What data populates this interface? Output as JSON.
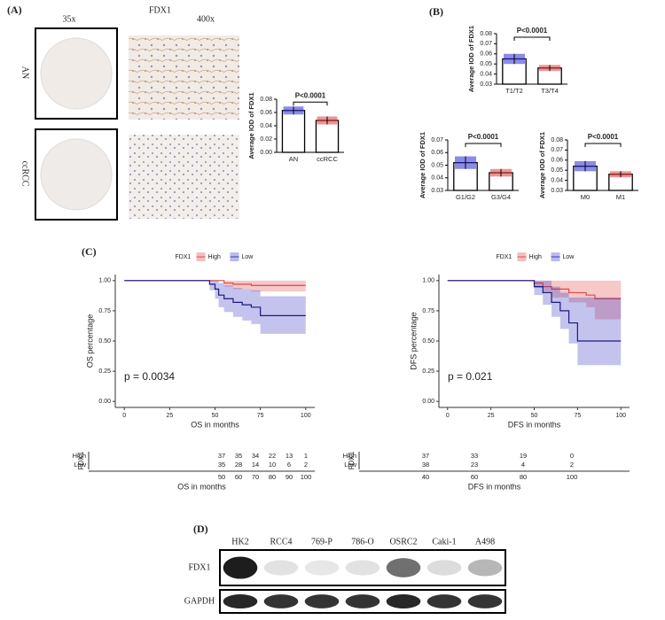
{
  "panels": [
    "(A)",
    "(B)",
    "(C)",
    "(D)"
  ],
  "ihc": {
    "marker": "FDX1",
    "magnifications": [
      "35x",
      "400x"
    ],
    "groups": [
      "AN",
      "ccRCC"
    ]
  },
  "chart_data": [
    {
      "type": "bar",
      "ylabel": "Average IOD of FDX1",
      "categories": [
        "AN",
        "ccRCC"
      ],
      "values": [
        0.063,
        0.048
      ],
      "errors": [
        0.006,
        0.006
      ],
      "colors": [
        "#2b2bd6",
        "#e03a3a"
      ],
      "annotation": "P<0.0001",
      "ylim": [
        0,
        0.08
      ],
      "yticks": [
        {
          "value": 0,
          "label": "0.00"
        },
        {
          "value": 0.02,
          "label": "0.02"
        },
        {
          "value": 0.04,
          "label": "0.04"
        },
        {
          "value": 0.06,
          "label": "0.06"
        },
        {
          "value": 0.08,
          "label": "0.08"
        }
      ]
    },
    {
      "type": "bar",
      "ylabel": "Average IOD of FDX1",
      "categories": [
        "T1/T2",
        "T3/T4"
      ],
      "values": [
        0.055,
        0.046
      ],
      "errors": [
        0.005,
        0.003
      ],
      "colors": [
        "#2b2bd6",
        "#e03a3a"
      ],
      "annotation": "P<0.0001",
      "ylim": [
        0.03,
        0.08
      ],
      "yticks": [
        {
          "value": 0.03,
          "label": "0.03"
        },
        {
          "value": 0.04,
          "label": "0.04"
        },
        {
          "value": 0.05,
          "label": "0.05"
        },
        {
          "value": 0.06,
          "label": "0.06"
        },
        {
          "value": 0.07,
          "label": "0.07"
        },
        {
          "value": 0.08,
          "label": "0.08"
        }
      ]
    },
    {
      "type": "bar",
      "ylabel": "Average IOD of FDX1",
      "categories": [
        "G1/G2",
        "G3/G4"
      ],
      "values": [
        0.052,
        0.044
      ],
      "errors": [
        0.005,
        0.003
      ],
      "colors": [
        "#2b2bd6",
        "#e03a3a"
      ],
      "annotation": "P<0.0001",
      "ylim": [
        0.03,
        0.07
      ],
      "yticks": [
        {
          "value": 0.03,
          "label": "0.03"
        },
        {
          "value": 0.04,
          "label": "0.04"
        },
        {
          "value": 0.05,
          "label": "0.05"
        },
        {
          "value": 0.06,
          "label": "0.06"
        },
        {
          "value": 0.07,
          "label": "0.07"
        }
      ]
    },
    {
      "type": "bar",
      "ylabel": "Average IOD of FDX1",
      "categories": [
        "M0",
        "M1"
      ],
      "values": [
        0.054,
        0.046
      ],
      "errors": [
        0.005,
        0.003
      ],
      "colors": [
        "#2b2bd6",
        "#e03a3a"
      ],
      "annotation": "P<0.0001",
      "ylim": [
        0.03,
        0.08
      ],
      "yticks": [
        {
          "value": 0.03,
          "label": "0.03"
        },
        {
          "value": 0.04,
          "label": "0.04"
        },
        {
          "value": 0.05,
          "label": "0.05"
        },
        {
          "value": 0.06,
          "label": "0.06"
        },
        {
          "value": 0.07,
          "label": "0.07"
        },
        {
          "value": 0.08,
          "label": "0.08"
        }
      ]
    },
    {
      "type": "line",
      "xlabel": "OS in months",
      "ylabel": "OS percentage",
      "legend_title": "FDX1",
      "annotation": "p = 0.0034",
      "xlim": [
        -5,
        105
      ],
      "xticks": [
        0,
        25,
        50,
        75,
        100
      ],
      "ylim": [
        -0.05,
        1.05
      ],
      "yticks": [
        {
          "value": 0,
          "label": "0.00"
        },
        {
          "value": 0.25,
          "label": "0.25"
        },
        {
          "value": 0.5,
          "label": "0.50"
        },
        {
          "value": 0.75,
          "label": "0.75"
        },
        {
          "value": 1,
          "label": "1.00"
        }
      ],
      "series": [
        {
          "name": "High",
          "color": "#e04848",
          "x": [
            0,
            50,
            55,
            60,
            70,
            100
          ],
          "values": [
            1,
            1,
            0.98,
            0.97,
            0.96,
            0.96
          ],
          "lower": [
            1,
            1,
            0.95,
            0.93,
            0.91,
            0.91
          ],
          "upper": [
            1,
            1,
            1,
            1,
            1,
            1
          ]
        },
        {
          "name": "Low",
          "color": "#3838c8",
          "x": [
            0,
            45,
            47,
            50,
            52,
            55,
            60,
            65,
            70,
            75,
            100
          ],
          "values": [
            1,
            1,
            0.97,
            0.93,
            0.88,
            0.85,
            0.82,
            0.8,
            0.78,
            0.71,
            0.71
          ],
          "lower": [
            1,
            1,
            0.92,
            0.85,
            0.78,
            0.74,
            0.7,
            0.67,
            0.64,
            0.56,
            0.56
          ],
          "upper": [
            1,
            1,
            1,
            1,
            0.98,
            0.96,
            0.94,
            0.93,
            0.92,
            0.87,
            0.87
          ]
        }
      ]
    },
    {
      "type": "line",
      "xlabel": "DFS in months",
      "ylabel": "DFS percentage",
      "legend_title": "FDX1",
      "annotation": "p = 0.021",
      "xlim": [
        -5,
        105
      ],
      "xticks": [
        0,
        25,
        50,
        75,
        100
      ],
      "ylim": [
        -0.05,
        1.05
      ],
      "yticks": [
        {
          "value": 0,
          "label": "0.00"
        },
        {
          "value": 0.25,
          "label": "0.25"
        },
        {
          "value": 0.5,
          "label": "0.50"
        },
        {
          "value": 0.75,
          "label": "0.75"
        },
        {
          "value": 1,
          "label": "1.00"
        }
      ],
      "series": [
        {
          "name": "High",
          "color": "#e04848",
          "x": [
            0,
            45,
            50,
            55,
            60,
            70,
            80,
            85,
            100
          ],
          "values": [
            1,
            1,
            0.98,
            0.95,
            0.93,
            0.9,
            0.88,
            0.85,
            0.85
          ],
          "lower": [
            1,
            1,
            0.94,
            0.9,
            0.86,
            0.82,
            0.78,
            0.68,
            0.68
          ],
          "upper": [
            1,
            1,
            1,
            1,
            1,
            1,
            1,
            1,
            1
          ]
        },
        {
          "name": "Low",
          "color": "#3838c8",
          "x": [
            0,
            45,
            50,
            55,
            60,
            65,
            70,
            75,
            100
          ],
          "values": [
            1,
            1,
            0.95,
            0.9,
            0.82,
            0.75,
            0.65,
            0.5,
            0.5
          ],
          "lower": [
            1,
            1,
            0.88,
            0.8,
            0.7,
            0.6,
            0.48,
            0.3,
            0.3
          ],
          "upper": [
            1,
            1,
            1,
            1,
            0.95,
            0.9,
            0.86,
            0.86,
            0.86
          ]
        }
      ]
    }
  ],
  "risk_tables": [
    {
      "title": "FDX1",
      "xlabel": "OS in months",
      "times": [
        "50",
        "60",
        "70",
        "80",
        "90",
        "100"
      ],
      "rows": [
        {
          "name": "High",
          "counts": [
            "37",
            "35",
            "34",
            "22",
            "13",
            "1"
          ]
        },
        {
          "name": "Low",
          "counts": [
            "35",
            "28",
            "14",
            "10",
            "6",
            "2"
          ]
        }
      ]
    },
    {
      "title": "FDX1",
      "xlabel": "DFS in months",
      "times": [
        "40",
        "60",
        "80",
        "100"
      ],
      "rows": [
        {
          "name": "High",
          "counts": [
            "37",
            "33",
            "19",
            "0"
          ]
        },
        {
          "name": "Low",
          "counts": [
            "38",
            "23",
            "4",
            "2"
          ]
        }
      ]
    }
  ],
  "blot": {
    "lanes": [
      "HK2",
      "RCC4",
      "769-P",
      "786-O",
      "OSRC2",
      "Caki-1",
      "A498"
    ],
    "rows": [
      {
        "label": "FDX1",
        "intensity": [
          0.95,
          0.12,
          0.1,
          0.12,
          0.6,
          0.15,
          0.3
        ]
      },
      {
        "label": "GAPDH",
        "intensity": [
          0.9,
          0.85,
          0.85,
          0.85,
          0.9,
          0.85,
          0.85
        ]
      }
    ]
  }
}
